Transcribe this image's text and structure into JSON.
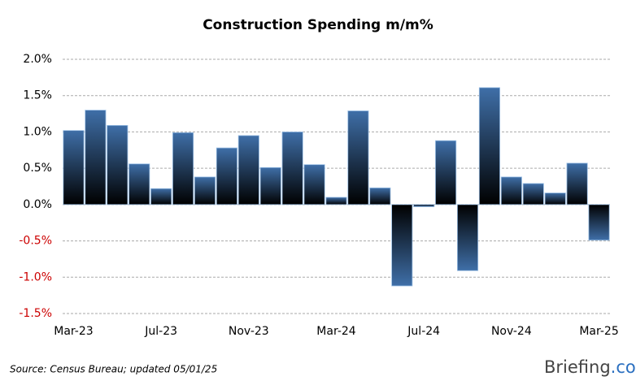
{
  "chart_data": {
    "type": "bar",
    "title": "Construction Spending m/m%",
    "categories": [
      "Mar-23",
      null,
      null,
      null,
      "Jul-23",
      null,
      null,
      null,
      "Nov-23",
      null,
      null,
      null,
      "Mar-24",
      null,
      null,
      null,
      "Jul-24",
      null,
      null,
      null,
      "Nov-24",
      null,
      null,
      null,
      "Mar-25"
    ],
    "values": [
      1.02,
      1.3,
      1.09,
      0.56,
      0.22,
      0.99,
      0.38,
      0.78,
      0.95,
      0.51,
      1.0,
      0.55,
      0.1,
      1.29,
      0.23,
      -1.12,
      -0.03,
      0.88,
      -0.91,
      1.61,
      0.38,
      0.29,
      0.16,
      0.57,
      -0.49
    ],
    "color": "#3f6fa8",
    "ylim": [
      -1.5,
      2.0
    ],
    "yticks": [
      {
        "value": -1.5,
        "label": "-1.5%"
      },
      {
        "value": -1.0,
        "label": "-1.0%"
      },
      {
        "value": -0.5,
        "label": "-0.5%"
      },
      {
        "value": 0,
        "label": "0.0%"
      },
      {
        "value": 0.5,
        "label": "0.5%"
      },
      {
        "value": 1.0,
        "label": "1.0%"
      },
      {
        "value": 1.5,
        "label": "1.5%"
      },
      {
        "value": 2.0,
        "label": "2.0%"
      }
    ],
    "grid": true,
    "negative_tick_color": "#cc0000",
    "source": "Source:  Census Bureau;  updated  05/01/25",
    "logo": [
      "Briefing",
      ".com"
    ]
  }
}
